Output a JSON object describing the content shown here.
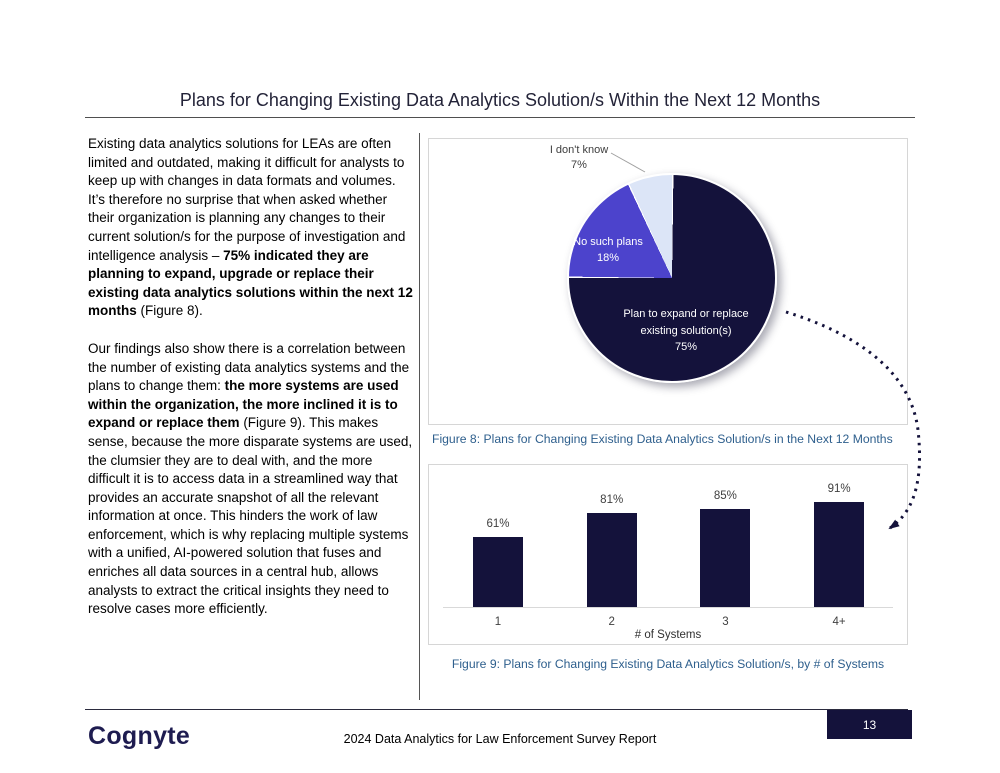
{
  "title": "Plans for Changing Existing Data Analytics Solution/s Within the Next 12 Months",
  "colors": {
    "navy": "#14123B",
    "purple": "#4C43CC",
    "lavender": "#DCE5F7",
    "caption_blue": "#2E5F8D",
    "logo_navy": "#1E1C50"
  },
  "body": {
    "p1": {
      "pre": "Existing data analytics solutions for LEAs are often limited and outdated, making it difficult for analysts to keep up with changes in data formats and volumes. It’s therefore no surprise that when asked whether their organization is planning any changes to their current solution/s for the purpose of investigation and intelligence analysis – ",
      "bold": "75% indicated they are planning to expand, upgrade or replace their existing data analytics solutions within the next 12 months",
      "post": " (Figure 8)."
    },
    "p2": {
      "pre": "Our findings also show there is a correlation between the number of existing data analytics systems and the plans to change them:  ",
      "bold": "the more systems are used within the organization, the more inclined it is to expand or replace them",
      "post": " (Figure 9). This makes sense, because the more disparate systems are used, the clumsier they are to deal with, and the more difficult it is to access data in a streamlined way that provides an accurate snapshot of all the relevant information at once. This hinders the work of law enforcement, which is why replacing multiple systems with a unified, AI-powered solution that fuses and enriches all data sources in a central hub, allows analysts to extract the critical insights they need to resolve cases more efficiently."
    }
  },
  "chart_data": [
    {
      "type": "pie",
      "caption": "Figure 8: Plans for Changing Existing Data Analytics Solution/s in the Next 12 Months",
      "start_angle_deg": 0,
      "direction": "clockwise",
      "slices": [
        {
          "label": "Plan to expand or replace existing solution(s)",
          "pct": "75%",
          "value": 75,
          "color": "#14123B"
        },
        {
          "label": "No such plans",
          "pct": "18%",
          "value": 18,
          "color": "#4C43CC"
        },
        {
          "label": "I don't know",
          "pct": "7%",
          "value": 7,
          "color": "#DCE5F7"
        }
      ]
    },
    {
      "type": "bar",
      "caption": "Figure 9: Plans for Changing Existing Data Analytics Solution/s, by # of Systems",
      "categories": [
        "1",
        "2",
        "3",
        "4+"
      ],
      "values": [
        61,
        81,
        85,
        91
      ],
      "value_labels": [
        "61%",
        "81%",
        "85%",
        "91%"
      ],
      "xlabel": "# of Systems",
      "bar_color": "#14123B",
      "ylim": [
        0,
        100
      ],
      "grid": false,
      "legend": "none"
    }
  ],
  "footer": {
    "logo": "Cognyte",
    "center_text": "2024 Data Analytics for Law Enforcement Survey Report",
    "page_number": "13"
  }
}
